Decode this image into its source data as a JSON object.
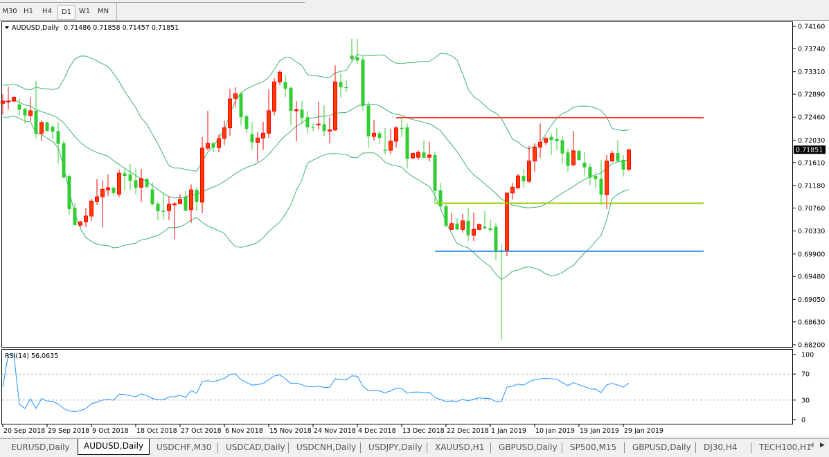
{
  "toolbar": {
    "timeframes": [
      "M30",
      "H1",
      "H4",
      "D1",
      "W1",
      "MN"
    ],
    "active_timeframe": "D1"
  },
  "chart": {
    "symbol_label": "AUDUSD,Daily",
    "ohlc_label": "0.71486 0.71858 0.71457 0.71851",
    "current_price": "0.71851",
    "price_axis": [
      "0.74160",
      "0.73740",
      "0.73310",
      "0.72890",
      "0.72460",
      "0.72030",
      "0.71610",
      "0.71180",
      "0.70760",
      "0.70330",
      "0.69900",
      "0.69480",
      "0.69050",
      "0.68630",
      "0.68200"
    ],
    "price_range": [
      0.682,
      0.7416
    ],
    "colors": {
      "bull": "#ff0000",
      "bull_fill": "#ff3c00",
      "bear": "#32cd32",
      "bands": "#3cb371",
      "rsi": "#1e90ff"
    },
    "candles": [
      [
        0.7272,
        0.7289,
        0.7251,
        0.7276
      ],
      [
        0.7275,
        0.7303,
        0.726,
        0.7276
      ],
      [
        0.7276,
        0.7285,
        0.7275,
        0.7283
      ],
      [
        0.727,
        0.7281,
        0.725,
        0.726
      ],
      [
        0.7262,
        0.7263,
        0.7234,
        0.7249
      ],
      [
        0.7249,
        0.7283,
        0.7238,
        0.7258
      ],
      [
        0.7258,
        0.7314,
        0.7207,
        0.7215
      ],
      [
        0.7216,
        0.7241,
        0.7201,
        0.7236
      ],
      [
        0.7236,
        0.7238,
        0.7219,
        0.722
      ],
      [
        0.7228,
        0.7231,
        0.7205,
        0.7219
      ],
      [
        0.722,
        0.7237,
        0.7159,
        0.7196
      ],
      [
        0.7197,
        0.7202,
        0.7132,
        0.7133
      ],
      [
        0.7136,
        0.7139,
        0.7063,
        0.7074
      ],
      [
        0.7076,
        0.7085,
        0.7044,
        0.7044
      ],
      [
        0.7044,
        0.7052,
        0.704,
        0.705
      ],
      [
        0.705,
        0.7076,
        0.704,
        0.7061
      ],
      [
        0.7061,
        0.7093,
        0.7052,
        0.7089
      ],
      [
        0.7088,
        0.713,
        0.7082,
        0.7097
      ],
      [
        0.7097,
        0.7128,
        0.704,
        0.7111
      ],
      [
        0.711,
        0.7139,
        0.7098,
        0.7114
      ],
      [
        0.7114,
        0.7117,
        0.71,
        0.7104
      ],
      [
        0.7102,
        0.7148,
        0.7096,
        0.7141
      ],
      [
        0.7141,
        0.7152,
        0.7109,
        0.7136
      ],
      [
        0.7139,
        0.7158,
        0.7109,
        0.7127
      ],
      [
        0.7128,
        0.715,
        0.7102,
        0.7114
      ],
      [
        0.7115,
        0.7149,
        0.7087,
        0.7131
      ],
      [
        0.7131,
        0.7131,
        0.7115,
        0.7115
      ],
      [
        0.7111,
        0.7124,
        0.708,
        0.7083
      ],
      [
        0.7084,
        0.7087,
        0.7053,
        0.707
      ],
      [
        0.7071,
        0.7105,
        0.7054,
        0.7069
      ],
      [
        0.7071,
        0.7098,
        0.7053,
        0.7083
      ],
      [
        0.7082,
        0.7087,
        0.7018,
        0.7084
      ],
      [
        0.7084,
        0.7102,
        0.7084,
        0.7092
      ],
      [
        0.7097,
        0.7108,
        0.707,
        0.7071
      ],
      [
        0.7073,
        0.712,
        0.7048,
        0.711
      ],
      [
        0.711,
        0.7115,
        0.707,
        0.7087
      ],
      [
        0.7087,
        0.7209,
        0.7066,
        0.7188
      ],
      [
        0.7188,
        0.7258,
        0.7184,
        0.7197
      ],
      [
        0.7197,
        0.72,
        0.718,
        0.7189
      ],
      [
        0.7189,
        0.7214,
        0.718,
        0.7206
      ],
      [
        0.7206,
        0.724,
        0.7194,
        0.7226
      ],
      [
        0.7226,
        0.7299,
        0.7211,
        0.728
      ],
      [
        0.7281,
        0.7302,
        0.7264,
        0.729
      ],
      [
        0.729,
        0.7293,
        0.7231,
        0.7246
      ],
      [
        0.7248,
        0.725,
        0.7216,
        0.7224
      ],
      [
        0.7214,
        0.7237,
        0.7185,
        0.7199
      ],
      [
        0.7199,
        0.7218,
        0.7162,
        0.7207
      ],
      [
        0.7207,
        0.7237,
        0.7185,
        0.7216
      ],
      [
        0.7216,
        0.7298,
        0.7207,
        0.7258
      ],
      [
        0.7257,
        0.7319,
        0.7249,
        0.7312
      ],
      [
        0.7312,
        0.7334,
        0.7306,
        0.733
      ],
      [
        0.7312,
        0.7325,
        0.7284,
        0.7299
      ],
      [
        0.7301,
        0.7303,
        0.7231,
        0.7258
      ],
      [
        0.7258,
        0.7276,
        0.7201,
        0.726
      ],
      [
        0.726,
        0.7276,
        0.7233,
        0.7245
      ],
      [
        0.7246,
        0.7258,
        0.7216,
        0.7227
      ],
      [
        0.7227,
        0.7234,
        0.722,
        0.7226
      ],
      [
        0.7232,
        0.7275,
        0.7223,
        0.7233
      ],
      [
        0.7233,
        0.7268,
        0.721,
        0.722
      ],
      [
        0.722,
        0.7246,
        0.7197,
        0.7222
      ],
      [
        0.7222,
        0.7343,
        0.722,
        0.7312
      ],
      [
        0.7312,
        0.7328,
        0.7283,
        0.7302
      ],
      [
        0.7302,
        0.7315,
        0.7293,
        0.7301
      ],
      [
        0.7361,
        0.7393,
        0.7352,
        0.7355
      ],
      [
        0.7358,
        0.7393,
        0.7345,
        0.7352
      ],
      [
        0.7354,
        0.736,
        0.7258,
        0.7267
      ],
      [
        0.7268,
        0.7275,
        0.7189,
        0.721
      ],
      [
        0.721,
        0.7241,
        0.7202,
        0.7216
      ],
      [
        0.7216,
        0.722,
        0.7196,
        0.7207
      ],
      [
        0.7185,
        0.7226,
        0.7176,
        0.7183
      ],
      [
        0.7184,
        0.7224,
        0.7177,
        0.7201
      ],
      [
        0.7201,
        0.7229,
        0.7189,
        0.7226
      ],
      [
        0.7226,
        0.7244,
        0.7209,
        0.7224
      ],
      [
        0.7227,
        0.7234,
        0.715,
        0.7168
      ],
      [
        0.717,
        0.718,
        0.7167,
        0.7178
      ],
      [
        0.7171,
        0.7184,
        0.7166,
        0.718
      ],
      [
        0.718,
        0.7202,
        0.717,
        0.717
      ],
      [
        0.7171,
        0.72,
        0.7163,
        0.7175
      ],
      [
        0.7175,
        0.7181,
        0.7085,
        0.7108
      ],
      [
        0.7109,
        0.7123,
        0.7073,
        0.7079
      ],
      [
        0.7079,
        0.7083,
        0.704,
        0.7043
      ],
      [
        0.7036,
        0.7067,
        0.7035,
        0.7047
      ],
      [
        0.7047,
        0.7057,
        0.7034,
        0.7036
      ],
      [
        0.7036,
        0.7065,
        0.703,
        0.7052
      ],
      [
        0.7052,
        0.7076,
        0.7014,
        0.7025
      ],
      [
        0.7025,
        0.7067,
        0.7014,
        0.7036
      ],
      [
        0.7036,
        0.7047,
        0.7034,
        0.7045
      ],
      [
        0.7041,
        0.707,
        0.7036,
        0.7038
      ],
      [
        0.7038,
        0.7054,
        0.703,
        0.7035
      ],
      [
        0.7041,
        0.7048,
        0.6979,
        0.6996
      ],
      [
        0.6997,
        0.7009,
        0.6829,
        0.6996
      ],
      [
        0.6996,
        0.7104,
        0.6986,
        0.7104
      ],
      [
        0.7104,
        0.7123,
        0.7092,
        0.7115
      ],
      [
        0.7114,
        0.714,
        0.7111,
        0.7136
      ],
      [
        0.7136,
        0.7149,
        0.7114,
        0.7126
      ],
      [
        0.7126,
        0.7192,
        0.7123,
        0.7164
      ],
      [
        0.7164,
        0.7197,
        0.7144,
        0.719
      ],
      [
        0.719,
        0.7234,
        0.717,
        0.7199
      ],
      [
        0.7199,
        0.7209,
        0.7194,
        0.7206
      ],
      [
        0.7209,
        0.7216,
        0.7175,
        0.7203
      ],
      [
        0.7205,
        0.7226,
        0.7184,
        0.7201
      ],
      [
        0.7203,
        0.7211,
        0.7159,
        0.7178
      ],
      [
        0.718,
        0.7187,
        0.7144,
        0.7155
      ],
      [
        0.7157,
        0.722,
        0.7155,
        0.7183
      ],
      [
        0.7183,
        0.7185,
        0.7164,
        0.7166
      ],
      [
        0.7161,
        0.718,
        0.7137,
        0.7152
      ],
      [
        0.7153,
        0.7159,
        0.7119,
        0.7133
      ],
      [
        0.7136,
        0.7143,
        0.7113,
        0.713
      ],
      [
        0.7131,
        0.7166,
        0.7082,
        0.7101
      ],
      [
        0.7101,
        0.7175,
        0.7074,
        0.7164
      ],
      [
        0.7164,
        0.7183,
        0.7162,
        0.7178
      ],
      [
        0.7179,
        0.7203,
        0.7162,
        0.7164
      ],
      [
        0.7166,
        0.7175,
        0.7135,
        0.7148
      ],
      [
        0.71486,
        0.71858,
        0.71457,
        0.71851
      ]
    ],
    "levels": [
      {
        "price": 0.7245,
        "color": "#ff3b30",
        "from_bar": 71
      },
      {
        "price": 0.7085,
        "color": "#99cc00",
        "from_bar": 78
      },
      {
        "price": 0.6995,
        "color": "#3a8ee6",
        "from_bar": 78
      }
    ],
    "date_labels": [
      {
        "bar": 0,
        "text": "20 Sep 2018"
      },
      {
        "bar": 8,
        "text": "29 Sep 2018"
      },
      {
        "bar": 16,
        "text": "9 Oct 2018"
      },
      {
        "bar": 24,
        "text": "18 Oct 2018"
      },
      {
        "bar": 32,
        "text": "27 Oct 2018"
      },
      {
        "bar": 40,
        "text": "6 Nov 2018"
      },
      {
        "bar": 48,
        "text": "15 Nov 2018"
      },
      {
        "bar": 56,
        "text": "24 Nov 2018"
      },
      {
        "bar": 64,
        "text": "4 Dec 2018"
      },
      {
        "bar": 72,
        "text": "13 Dec 2018"
      },
      {
        "bar": 80,
        "text": "22 Dec 2018"
      },
      {
        "bar": 88,
        "text": "1 Jan 2019"
      },
      {
        "bar": 96,
        "text": "10 Jan 2019"
      },
      {
        "bar": 104,
        "text": "19 Jan 2019"
      },
      {
        "bar": 112,
        "text": "29 Jan 2019"
      }
    ]
  },
  "rsi": {
    "label": "RSI(14) 56.0635",
    "axis": [
      "100",
      "70",
      "30",
      "0"
    ],
    "levels": [
      70,
      30
    ]
  },
  "tabs": [
    "EURUSD,Daily",
    "AUDUSD,Daily",
    "USDCHF,M30",
    "USDCAD,Daily",
    "USDCNH,Daily",
    "USDJPY,Daily",
    "XAUUSD,H1",
    "GBPUSD,Daily",
    "SP500,M15",
    "GBPUSD,Daily",
    "DJ30,H4",
    "TECH100,H1"
  ],
  "active_tab": 1
}
